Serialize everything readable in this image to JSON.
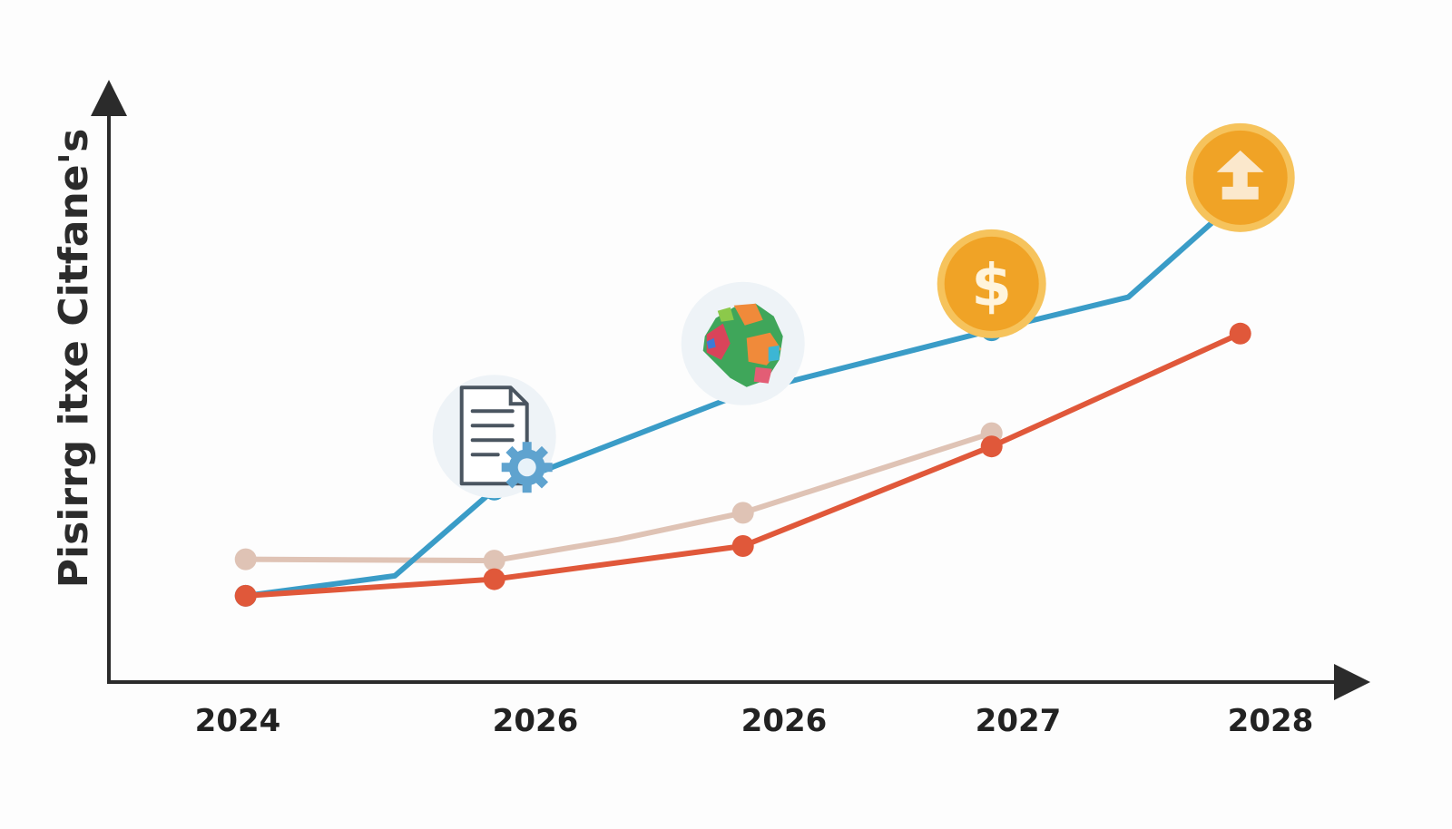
{
  "chart_data": {
    "type": "line",
    "title": "",
    "xlabel": "",
    "ylabel": "Pisirrg itxe Citfane's",
    "categories": [
      "2024",
      "2026",
      "2026",
      "2027",
      "2028"
    ],
    "series": [
      {
        "color": "#3a9cc7",
        "points": [
          [
            0,
            0.3
          ],
          [
            0.6,
            0.6
          ],
          [
            1,
            1.9
          ],
          [
            2,
            3.35
          ],
          [
            3,
            4.3
          ],
          [
            3.55,
            4.8
          ],
          [
            4,
            6.3
          ]
        ]
      },
      {
        "color": "#e0583a",
        "points": [
          [
            0,
            0.3
          ],
          [
            1,
            0.55
          ],
          [
            2,
            1.05
          ],
          [
            3,
            2.55
          ],
          [
            4,
            4.25
          ]
        ]
      },
      {
        "color": "#dfc3b5",
        "points": [
          [
            0,
            0.85
          ],
          [
            1,
            0.83
          ],
          [
            1.5,
            1.15
          ],
          [
            2,
            1.55
          ],
          [
            3,
            2.75
          ]
        ]
      }
    ],
    "markers": {
      "blue": [
        0,
        2,
        4,
        6
      ],
      "red": [
        0,
        1,
        2,
        3,
        4
      ],
      "beige": [
        0,
        1,
        3,
        4
      ]
    },
    "ylim": [
      -1,
      7.8
    ],
    "xlim": [
      -0.55,
      4.45
    ],
    "grid": false,
    "legend": "none",
    "annotations": [
      {
        "icon": "document-gear-icon",
        "category_index": 1,
        "level": 2.7
      },
      {
        "icon": "map-icon",
        "category_index": 2,
        "level": 4.1
      },
      {
        "icon": "dollar-coin-icon",
        "category_index": 3,
        "level": 5.0,
        "symbol": "$"
      },
      {
        "icon": "up-arrow-coin-icon",
        "category_index": 4,
        "level": 6.6
      }
    ]
  },
  "colors": {
    "axis": "#2b2b2b",
    "coin": "#f0a326",
    "coin_ring": "#f6c35c"
  }
}
